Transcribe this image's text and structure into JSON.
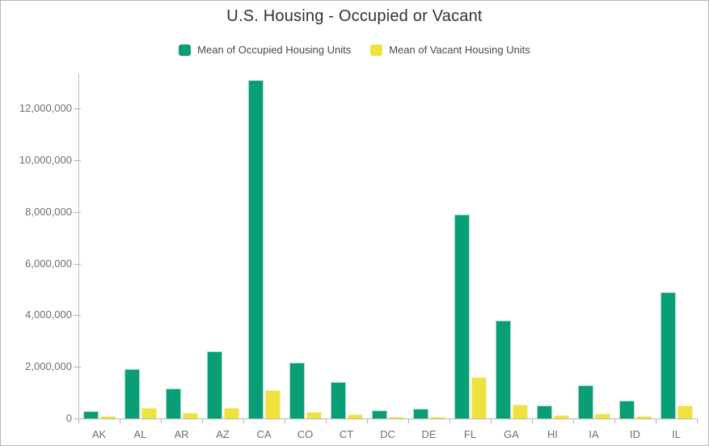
{
  "chart_data": {
    "type": "bar",
    "title": "U.S. Housing - Occupied or Vacant",
    "categories": [
      "AK",
      "AL",
      "AR",
      "AZ",
      "CA",
      "CO",
      "CT",
      "DC",
      "DE",
      "FL",
      "GA",
      "HI",
      "IA",
      "ID",
      "IL"
    ],
    "series": [
      {
        "name": "Mean of Occupied Housing Units",
        "color": "#0a9e76",
        "values": [
          270000,
          1900000,
          1150000,
          2600000,
          13100000,
          2150000,
          1400000,
          300000,
          370000,
          7900000,
          3800000,
          500000,
          1300000,
          680000,
          4900000
        ]
      },
      {
        "name": "Mean of Vacant Housing Units",
        "color": "#efe23f",
        "values": [
          80000,
          400000,
          210000,
          420000,
          1100000,
          240000,
          160000,
          50000,
          60000,
          1600000,
          520000,
          110000,
          190000,
          90000,
          500000
        ]
      }
    ],
    "xlabel": "",
    "ylabel": "",
    "y_ticks": [
      0,
      2000000,
      4000000,
      6000000,
      8000000,
      10000000,
      12000000
    ],
    "y_tick_labels": [
      "0",
      "2,000,000",
      "4,000,000",
      "6,000,000",
      "8,000,000",
      "10,000,000",
      "12,000,000"
    ],
    "ylim": [
      0,
      13350000
    ],
    "grid": false,
    "legend_position": "top"
  },
  "colors": {
    "occupied": "#0a9e76",
    "occupied_border": "#a5dbc5",
    "vacant": "#efe23f",
    "vacant_border": "#f6f0a2",
    "axis_line": "#c2c2c2",
    "tick_text": "#6f6f6f",
    "legend_text": "#4a4a4a",
    "title_text": "#323232",
    "card_border": "#b9b9b9"
  }
}
